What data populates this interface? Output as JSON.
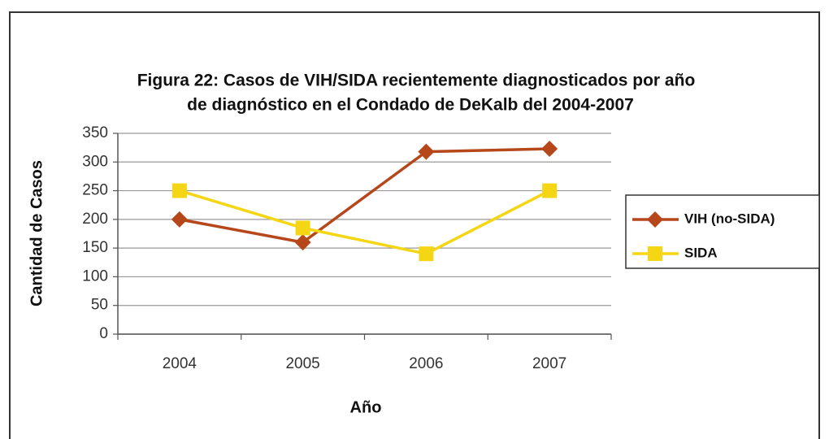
{
  "chart_data": {
    "type": "line",
    "title": [
      "Figura 22: Casos de VIH/SIDA recientemente diagnosticados por año",
      "de diagnóstico en el Condado de DeKalb del 2004-2007"
    ],
    "x_label": "Año",
    "y_label": "Cantidad de Casos",
    "categories": [
      "2004",
      "2005",
      "2006",
      "2007"
    ],
    "series": [
      {
        "name": "VIH (no-SIDA)",
        "color": "#b5471b",
        "marker": "diamond",
        "values": [
          200,
          160,
          318,
          323
        ]
      },
      {
        "name": "SIDA",
        "color": "#f5d614",
        "marker": "square",
        "values": [
          250,
          185,
          140,
          250
        ]
      }
    ],
    "ylim": [
      0,
      350
    ],
    "yticks": [
      0,
      50,
      100,
      150,
      200,
      250,
      300,
      350
    ],
    "grid": true,
    "legend": "right"
  }
}
